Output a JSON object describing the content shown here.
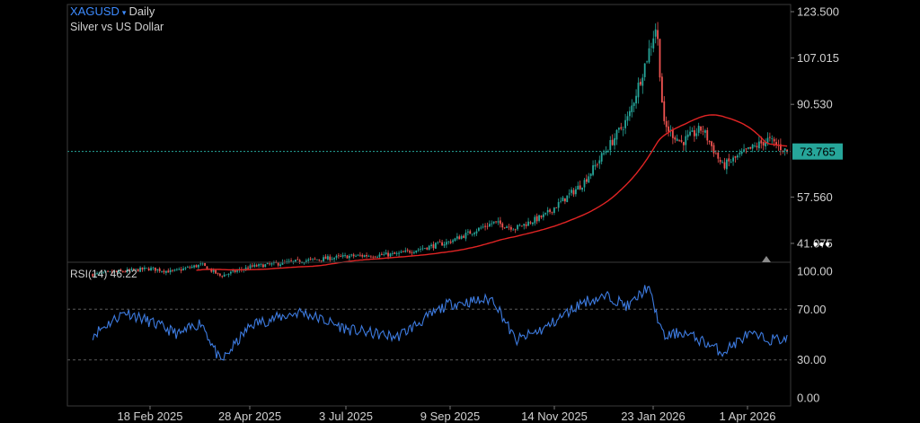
{
  "header": {
    "symbol": "XAGUSD",
    "timeframe": "Daily",
    "description": "Silver vs US Dollar",
    "caret": "▾"
  },
  "price_axis": {
    "ticks": [
      "123.500",
      "107.015",
      "90.530",
      "57.560",
      "41.075"
    ],
    "last_price": "73.765"
  },
  "rsi": {
    "label": "RSI(14) 46.22",
    "ticks": [
      "100.00",
      "70.00",
      "30.00",
      "0.00"
    ]
  },
  "time_axis": {
    "ticks": [
      "18 Feb 2025",
      "28 Apr 2025",
      "3 Jul 2025",
      "9 Sep 2025",
      "14 Nov 2025",
      "23 Jan 2026",
      "1 Apr 2026"
    ]
  },
  "more_label": "•••",
  "colors": {
    "background": "#000000",
    "up": "#26a69a",
    "down": "#ef5350",
    "ma": "#e02424",
    "rsi": "#3d7be0",
    "last_price_bg": "#26a69a",
    "grid": "#3a3a3a"
  },
  "chart_data": [
    {
      "type": "candlestick",
      "title": "XAGUSD Daily",
      "subtitle": "Silver vs US Dollar",
      "ylim": [
        32.8,
        123.5
      ],
      "last": 73.765,
      "ma_start": [
        29.5,
        29.6,
        29.8,
        30.2,
        30.7,
        31.3,
        32.0,
        33.4,
        35.8,
        39.5,
        46.0,
        55.8,
        62.5,
        64.2,
        62.2
      ],
      "price_path": [
        [
          "2025-01-10",
          30.0
        ],
        [
          "2025-02-18",
          32.1
        ],
        [
          "2025-03-05",
          31.0
        ],
        [
          "2025-03-25",
          33.5
        ],
        [
          "2025-04-07",
          29.5
        ],
        [
          "2025-04-28",
          32.8
        ],
        [
          "2025-06-01",
          34.8
        ],
        [
          "2025-07-03",
          36.5
        ],
        [
          "2025-08-05",
          37.2
        ],
        [
          "2025-09-09",
          41.5
        ],
        [
          "2025-10-10",
          48.5
        ],
        [
          "2025-10-25",
          46.5
        ],
        [
          "2025-11-14",
          51.0
        ],
        [
          "2025-12-10",
          62.5
        ],
        [
          "2025-12-28",
          76.0
        ],
        [
          "2026-01-10",
          86.0
        ],
        [
          "2026-01-23",
          108.0
        ],
        [
          "2026-01-29",
          119.0
        ],
        [
          "2026-02-03",
          83.0
        ],
        [
          "2026-02-15",
          77.0
        ],
        [
          "2026-03-01",
          82.0
        ],
        [
          "2026-03-15",
          68.5
        ],
        [
          "2026-04-01",
          74.0
        ],
        [
          "2026-04-15",
          78.0
        ],
        [
          "2026-04-28",
          73.765
        ]
      ]
    },
    {
      "type": "line",
      "title": "RSI(14) 46.22",
      "ylim": [
        0,
        100
      ],
      "levels": [
        70,
        30
      ],
      "rsi_path": [
        [
          "2025-01-10",
          50
        ],
        [
          "2025-02-01",
          68
        ],
        [
          "2025-02-18",
          60
        ],
        [
          "2025-03-10",
          50
        ],
        [
          "2025-03-25",
          60
        ],
        [
          "2025-04-07",
          28
        ],
        [
          "2025-04-28",
          58
        ],
        [
          "2025-06-01",
          68
        ],
        [
          "2025-07-03",
          54
        ],
        [
          "2025-08-05",
          48
        ],
        [
          "2025-09-09",
          74
        ],
        [
          "2025-10-10",
          78
        ],
        [
          "2025-10-25",
          45
        ],
        [
          "2025-11-14",
          55
        ],
        [
          "2025-12-10",
          76
        ],
        [
          "2025-12-28",
          80
        ],
        [
          "2026-01-10",
          72
        ],
        [
          "2026-01-23",
          88
        ],
        [
          "2026-02-03",
          48
        ],
        [
          "2026-02-15",
          52
        ],
        [
          "2026-03-01",
          45
        ],
        [
          "2026-03-15",
          36
        ],
        [
          "2026-04-01",
          50
        ],
        [
          "2026-04-15",
          46
        ],
        [
          "2026-04-28",
          46.22
        ]
      ]
    }
  ]
}
